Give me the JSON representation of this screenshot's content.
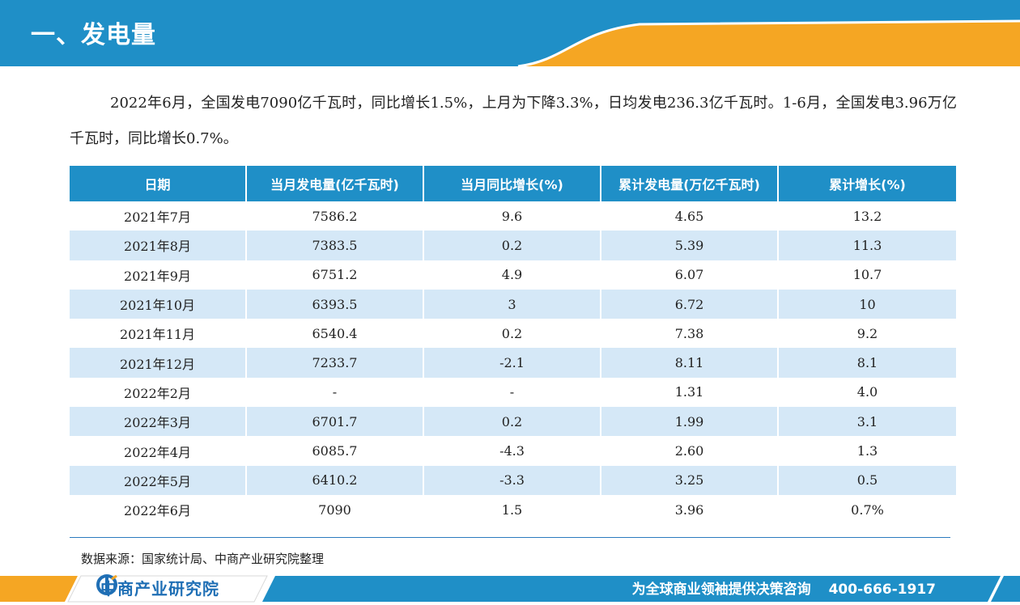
{
  "header": {
    "title": "一、发电量"
  },
  "intro": {
    "text": "2022年6月，全国发电7090亿千瓦时，同比增长1.5%，上月为下降3.3%，日均发电236.3亿千瓦时。1-6月，全国发电3.96万亿千瓦时，同比增长0.7%。"
  },
  "table": {
    "headers": [
      "日期",
      "当月发电量(亿千瓦时)",
      "当月同比增长(%)",
      "累计发电量(万亿千瓦时)",
      "累计增长(%)"
    ],
    "rows": [
      [
        "2021年7月",
        "7586.2",
        "9.6",
        "4.65",
        "13.2"
      ],
      [
        "2021年8月",
        "7383.5",
        "0.2",
        "5.39",
        "11.3"
      ],
      [
        "2021年9月",
        "6751.2",
        "4.9",
        "6.07",
        "10.7"
      ],
      [
        "2021年10月",
        "6393.5",
        "3",
        "6.72",
        "10"
      ],
      [
        "2021年11月",
        "6540.4",
        "0.2",
        "7.38",
        "9.2"
      ],
      [
        "2021年12月",
        "7233.7",
        "-2.1",
        "8.11",
        "8.1"
      ],
      [
        "2022年2月",
        "-",
        "-",
        "1.31",
        "4.0"
      ],
      [
        "2022年3月",
        "6701.7",
        "0.2",
        "1.99",
        "3.1"
      ],
      [
        "2022年4月",
        "6085.7",
        "-4.3",
        "2.60",
        "1.3"
      ],
      [
        "2022年5月",
        "6410.2",
        "-3.3",
        "3.25",
        "0.5"
      ],
      [
        "2022年6月",
        "7090",
        "1.5",
        "3.96",
        "0.7%"
      ]
    ]
  },
  "source": {
    "text": "数据来源：国家统计局、中商产业研究院整理"
  },
  "footer": {
    "logo_text": "中商产业研究院",
    "logo_icon": "company-logo-icon",
    "slogan": "为全球商业领袖提供决策咨询",
    "phone": "400-666-1917"
  },
  "colors": {
    "header_blue": "#1f8fc7",
    "accent_orange": "#f5a623",
    "stripe_blue": "#d5e8f7",
    "logo_blue": "#1f6fb5"
  }
}
